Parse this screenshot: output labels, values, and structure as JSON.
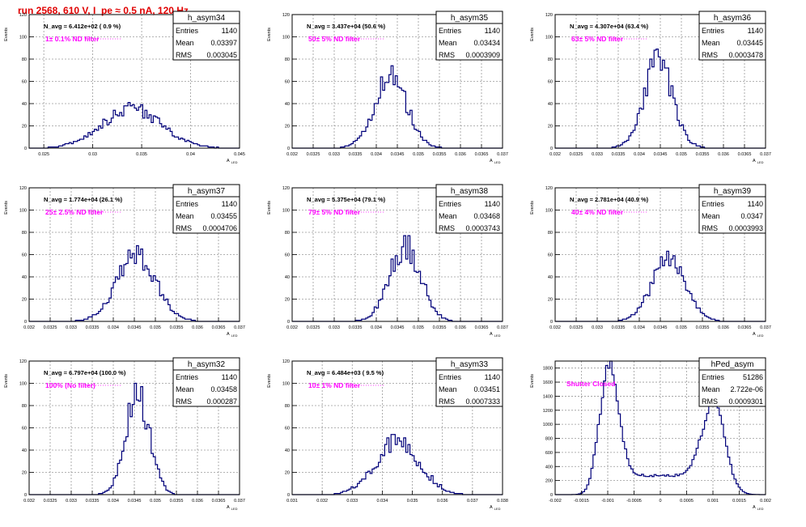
{
  "page_title": "run 2568,   610 V, I_pe ≈ 0.5 nA, 120 Hz",
  "colors": {
    "histogram": "#00007a",
    "annotation": "#ff00ff",
    "title": "#e00000",
    "grid": "#9a9a9a"
  },
  "stat_labels": {
    "entries": "Entries",
    "mean": "Mean",
    "rms": "RMS"
  },
  "ylabel": "Events",
  "xlabel": "A",
  "xlabel_sub": "LED",
  "chart_data": [
    {
      "type": "histogram",
      "name": "h_asym34",
      "navg": "N_avg = 6.412e+02 ( 0.9 %)",
      "filter": "1± 0.1% ND filter",
      "entries": "1140",
      "mean": "0.03397",
      "rms": "0.003045",
      "xlim": [
        0.0235,
        0.045
      ],
      "ylim": [
        0,
        120
      ],
      "xticks": [
        0.025,
        0.03,
        0.035,
        0.04,
        0.045
      ],
      "xtick_labels": [
        "0.025",
        "0.03",
        "0.035",
        "0.04",
        "0.045"
      ],
      "yticks": [
        0,
        20,
        40,
        60,
        80,
        100,
        120
      ],
      "ytick_labels": [
        "0",
        "20",
        "40",
        "60",
        "80",
        "100",
        "120"
      ],
      "mu": 0.03397,
      "sigma": 0.003045,
      "peak": 35,
      "shape": "gauss",
      "noise": 0.18
    },
    {
      "type": "histogram",
      "name": "h_asym35",
      "navg": "N_avg = 3.437e+04 (50.6 %)",
      "filter": "50± 5% ND filter",
      "entries": "1140",
      "mean": "0.03434",
      "rms": "0.0003909",
      "xlim": [
        0.032,
        0.037
      ],
      "ylim": [
        0,
        120
      ],
      "xticks": [
        0.032,
        0.0325,
        0.033,
        0.0335,
        0.034,
        0.0345,
        0.035,
        0.0355,
        0.036,
        0.0365,
        0.037
      ],
      "xtick_labels": [
        "0.032",
        "0.0325",
        "0.033",
        "0.0335",
        "0.034",
        "0.0345",
        "0.035",
        "0.0355",
        "0.036",
        "0.0365",
        "0.037"
      ],
      "yticks": [
        0,
        20,
        40,
        60,
        80,
        100,
        120
      ],
      "ytick_labels": [
        "0",
        "20",
        "40",
        "60",
        "80",
        "100",
        "120"
      ],
      "mu": 0.03434,
      "sigma": 0.0003909,
      "peak": 62,
      "shape": "gauss",
      "noise": 0.2
    },
    {
      "type": "histogram",
      "name": "h_asym36",
      "navg": "N_avg = 4.307e+04 (63.4 %)",
      "filter": "63± 5% ND filter",
      "entries": "1140",
      "mean": "0.03445",
      "rms": "0.0003478",
      "xlim": [
        0.032,
        0.037
      ],
      "ylim": [
        0,
        120
      ],
      "xticks": [
        0.032,
        0.0325,
        0.033,
        0.0335,
        0.034,
        0.0345,
        0.035,
        0.0355,
        0.036,
        0.0365,
        0.037
      ],
      "xtick_labels": [
        "0.032",
        "0.0325",
        "0.033",
        "0.0335",
        "0.034",
        "0.0345",
        "0.035",
        "0.0355",
        "0.036",
        "0.0365",
        "0.037"
      ],
      "yticks": [
        0,
        20,
        40,
        60,
        80,
        100,
        120
      ],
      "ytick_labels": [
        "0",
        "20",
        "40",
        "60",
        "80",
        "100",
        "120"
      ],
      "mu": 0.03445,
      "sigma": 0.0003478,
      "peak": 76,
      "shape": "gauss",
      "noise": 0.2
    },
    {
      "type": "histogram",
      "name": "h_asym37",
      "navg": "N_avg = 1.774e+04 (26.1 %)",
      "filter": "25± 2.5% ND filter",
      "entries": "1140",
      "mean": "0.03455",
      "rms": "0.0004706",
      "xlim": [
        0.032,
        0.037
      ],
      "ylim": [
        0,
        120
      ],
      "xticks": [
        0.032,
        0.0325,
        0.033,
        0.0335,
        0.034,
        0.0345,
        0.035,
        0.0355,
        0.036,
        0.0365,
        0.037
      ],
      "xtick_labels": [
        "0.032",
        "0.0325",
        "0.033",
        "0.0335",
        "0.034",
        "0.0345",
        "0.035",
        "0.0355",
        "0.036",
        "0.0365",
        "0.037"
      ],
      "yticks": [
        0,
        20,
        40,
        60,
        80,
        100,
        120
      ],
      "ytick_labels": [
        "0",
        "20",
        "40",
        "60",
        "80",
        "100",
        "120"
      ],
      "mu": 0.03455,
      "sigma": 0.0004706,
      "peak": 58,
      "shape": "gauss",
      "noise": 0.2
    },
    {
      "type": "histogram",
      "name": "h_asym38",
      "navg": "N_avg = 5.375e+04 (79.1 %)",
      "filter": "79± 5% ND filter",
      "entries": "1140",
      "mean": "0.03468",
      "rms": "0.0003743",
      "xlim": [
        0.032,
        0.037
      ],
      "ylim": [
        0,
        120
      ],
      "xticks": [
        0.032,
        0.0325,
        0.033,
        0.0335,
        0.034,
        0.0345,
        0.035,
        0.0355,
        0.036,
        0.0365,
        0.037
      ],
      "xtick_labels": [
        "0.032",
        "0.0325",
        "0.033",
        "0.0335",
        "0.034",
        "0.0345",
        "0.035",
        "0.0355",
        "0.036",
        "0.0365",
        "0.037"
      ],
      "yticks": [
        0,
        20,
        40,
        60,
        80,
        100,
        120
      ],
      "ytick_labels": [
        "0",
        "20",
        "40",
        "60",
        "80",
        "100",
        "120"
      ],
      "mu": 0.03468,
      "sigma": 0.0003743,
      "peak": 66,
      "shape": "gauss",
      "noise": 0.2
    },
    {
      "type": "histogram",
      "name": "h_asym39",
      "navg": "N_avg = 2.781e+04 (40.9 %)",
      "filter": "40± 4% ND filter",
      "entries": "1140",
      "mean": "0.0347",
      "rms": "0.0003993",
      "xlim": [
        0.032,
        0.037
      ],
      "ylim": [
        0,
        120
      ],
      "xticks": [
        0.032,
        0.0325,
        0.033,
        0.0335,
        0.034,
        0.0345,
        0.035,
        0.0355,
        0.036,
        0.0365,
        0.037
      ],
      "xtick_labels": [
        "0.032",
        "0.0325",
        "0.033",
        "0.0335",
        "0.034",
        "0.0345",
        "0.035",
        "0.0355",
        "0.036",
        "0.0365",
        "0.037"
      ],
      "yticks": [
        0,
        20,
        40,
        60,
        80,
        100,
        120
      ],
      "ytick_labels": [
        "0",
        "20",
        "40",
        "60",
        "80",
        "100",
        "120"
      ],
      "mu": 0.0347,
      "sigma": 0.0003993,
      "peak": 56,
      "shape": "gauss",
      "noise": 0.15
    },
    {
      "type": "histogram",
      "name": "h_asym32",
      "navg": "N_avg = 6.797e+04 (100.0 %)",
      "filter": "100% (No filter)",
      "entries": "1140",
      "mean": "0.03458",
      "rms": "0.000287",
      "xlim": [
        0.032,
        0.037
      ],
      "ylim": [
        0,
        120
      ],
      "xticks": [
        0.032,
        0.0325,
        0.033,
        0.0335,
        0.034,
        0.0345,
        0.035,
        0.0355,
        0.036,
        0.0365,
        0.037
      ],
      "xtick_labels": [
        "0.032",
        "0.0325",
        "0.033",
        "0.0335",
        "0.034",
        "0.0345",
        "0.035",
        "0.0355",
        "0.036",
        "0.0365",
        "0.037"
      ],
      "yticks": [
        0,
        20,
        40,
        60,
        80,
        100,
        120
      ],
      "ytick_labels": [
        "0",
        "20",
        "40",
        "60",
        "80",
        "100",
        "120"
      ],
      "mu": 0.03458,
      "sigma": 0.000287,
      "peak": 88,
      "shape": "gauss",
      "noise": 0.22
    },
    {
      "type": "histogram",
      "name": "h_asym33",
      "navg": "N_avg = 6.484e+03 ( 9.5 %)",
      "filter": "10± 1% ND filter",
      "entries": "1140",
      "mean": "0.03451",
      "rms": "0.0007333",
      "xlim": [
        0.031,
        0.038
      ],
      "ylim": [
        0,
        120
      ],
      "xticks": [
        0.031,
        0.032,
        0.033,
        0.034,
        0.035,
        0.036,
        0.037,
        0.038
      ],
      "xtick_labels": [
        "0.031",
        "0.032",
        "0.033",
        "0.034",
        "0.035",
        "0.036",
        "0.037",
        "0.038"
      ],
      "yticks": [
        0,
        20,
        40,
        60,
        80,
        100,
        120
      ],
      "ytick_labels": [
        "0",
        "20",
        "40",
        "60",
        "80",
        "100",
        "120"
      ],
      "mu": 0.03451,
      "sigma": 0.0007333,
      "peak": 47,
      "shape": "gauss",
      "noise": 0.2
    },
    {
      "type": "histogram",
      "name": "hPed_asym",
      "navg": "",
      "filter": "Shutter Closed",
      "entries": "51286",
      "mean": "2.722e-06",
      "rms": "0.0009301",
      "xlim": [
        -0.002,
        0.002
      ],
      "ylim": [
        0,
        1900
      ],
      "xticks": [
        -0.002,
        -0.0015,
        -0.001,
        -0.0005,
        0,
        0.0005,
        0.001,
        0.0015,
        0.002
      ],
      "xtick_labels": [
        "-0.002",
        "-0.0015",
        "-0.001",
        "-0.0005",
        "0",
        "0.0005",
        "0.001",
        "0.0015",
        "0.002"
      ],
      "yticks": [
        0,
        200,
        400,
        600,
        800,
        1000,
        1200,
        1400,
        1600,
        1800
      ],
      "ytick_labels": [
        "0",
        "200",
        "400",
        "600",
        "800",
        "1000",
        "1200",
        "1400",
        "1600",
        "1800"
      ],
      "shape": "double",
      "peaks": [
        {
          "mu": -0.00097,
          "sigma": 0.00018,
          "height": 1650
        },
        {
          "mu": 0.00102,
          "sigma": 0.00022,
          "height": 1100
        }
      ],
      "baseline": 270,
      "noise": 0.06
    }
  ]
}
